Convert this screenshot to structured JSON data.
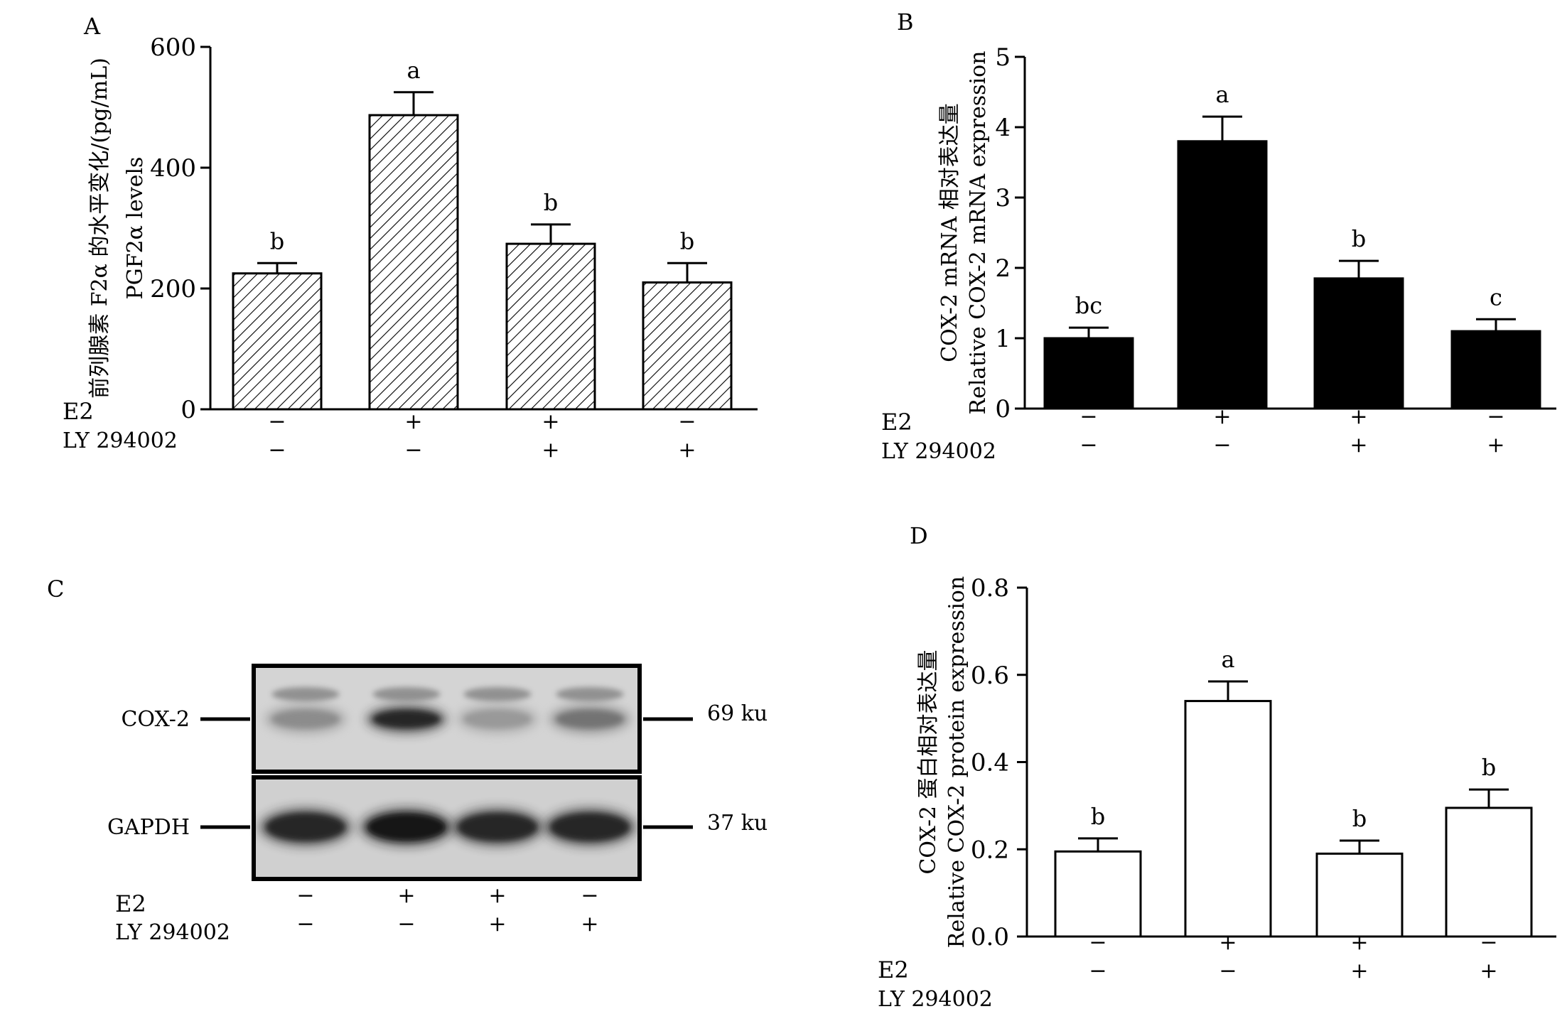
{
  "chart_data": [
    {
      "panel": "A",
      "type": "bar",
      "pattern": "hatched",
      "ylabel_cn": "前列腺素 F2α 的水平变化/(pg/mL)",
      "ylabel_en": "PGF2α levels",
      "ylim": [
        0,
        600
      ],
      "yticks": [
        "0",
        "200",
        "400",
        "600"
      ],
      "values": [
        225,
        487,
        274,
        210
      ],
      "errors": [
        17,
        38,
        32,
        32
      ],
      "sig_labels": [
        "b",
        "a",
        "b",
        "b"
      ],
      "row_labels": [
        "E2",
        "LY 294002"
      ],
      "e2_signs": [
        "−",
        "+",
        "+",
        "−"
      ],
      "ly_signs": [
        "−",
        "−",
        "+",
        "+"
      ]
    },
    {
      "panel": "B",
      "type": "bar",
      "pattern": "solid",
      "ylabel_cn": "COX-2 mRNA 相对表达量",
      "ylabel_en": "Relative COX-2 mRNA expression",
      "ylim": [
        0,
        5
      ],
      "yticks": [
        "0",
        "1",
        "2",
        "3",
        "4",
        "5"
      ],
      "values": [
        1.0,
        3.8,
        1.85,
        1.1
      ],
      "errors": [
        0.15,
        0.35,
        0.25,
        0.17
      ],
      "sig_labels": [
        "bc",
        "a",
        "b",
        "c"
      ],
      "row_labels": [
        "E2",
        "LY 294002"
      ],
      "e2_signs": [
        "−",
        "+",
        "+",
        "−"
      ],
      "ly_signs": [
        "−",
        "−",
        "+",
        "+"
      ]
    },
    {
      "panel": "D",
      "type": "bar",
      "pattern": "open",
      "ylabel_cn": "COX-2 蛋白相对表达量",
      "ylabel_en": "Relative COX-2 protein expression",
      "ylim": [
        0,
        0.8
      ],
      "yticks": [
        "0.0",
        "0.2",
        "0.4",
        "0.6",
        "0.8"
      ],
      "values": [
        0.195,
        0.54,
        0.19,
        0.295
      ],
      "errors": [
        0.03,
        0.045,
        0.03,
        0.042
      ],
      "sig_labels": [
        "b",
        "a",
        "b",
        "b"
      ],
      "row_labels": [
        "E2",
        "LY 294002"
      ],
      "e2_signs": [
        "−",
        "+",
        "+",
        "−"
      ],
      "ly_signs": [
        "−",
        "−",
        "+",
        "+"
      ]
    }
  ],
  "western_blot": {
    "panel": "C",
    "bands": [
      {
        "label": "COX-2",
        "size": "69 ku",
        "intensity": [
          0.45,
          0.85,
          0.4,
          0.55
        ]
      },
      {
        "label": "GAPDH",
        "size": "37 ku",
        "intensity": [
          0.85,
          0.9,
          0.85,
          0.85
        ]
      }
    ],
    "row_labels": [
      "E2",
      "LY 294002"
    ],
    "e2_signs": [
      "−",
      "+",
      "+",
      "−"
    ],
    "ly_signs": [
      "−",
      "−",
      "+",
      "+"
    ]
  }
}
